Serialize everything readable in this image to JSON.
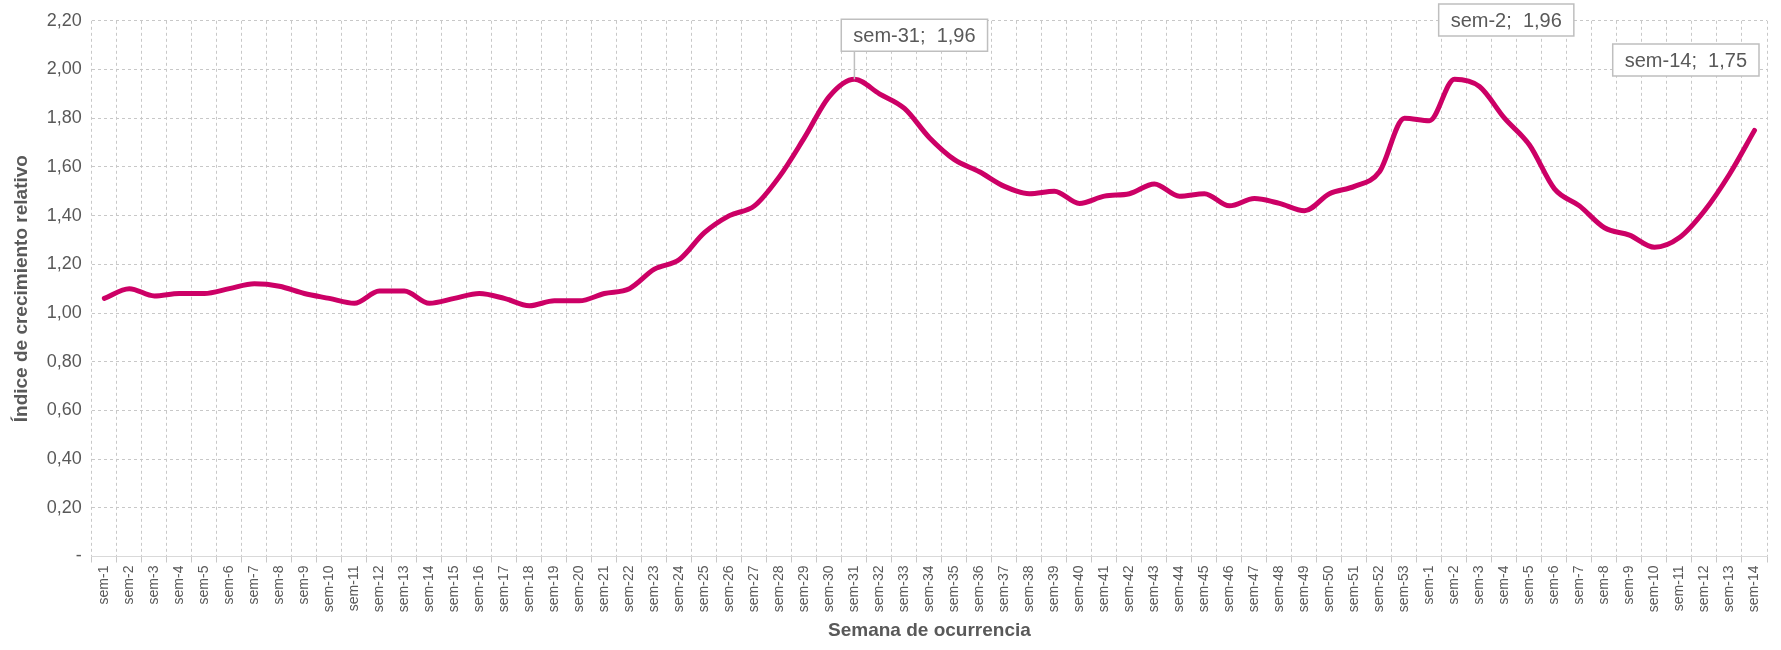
{
  "chart_data": {
    "type": "line",
    "xlabel": "Semana de ocurrencia",
    "ylabel": "Índice de crecimiento relativo",
    "categories": [
      "sem-1",
      "sem-2",
      "sem-3",
      "sem-4",
      "sem-5",
      "sem-6",
      "sem-7",
      "sem-8",
      "sem-9",
      "sem-10",
      "sem-11",
      "sem-12",
      "sem-13",
      "sem-14",
      "sem-15",
      "sem-16",
      "sem-17",
      "sem-18",
      "sem-19",
      "sem-20",
      "sem-21",
      "sem-22",
      "sem-23",
      "sem-24",
      "sem-25",
      "sem-26",
      "sem-27",
      "sem-28",
      "sem-29",
      "sem-30",
      "sem-31",
      "sem-32",
      "sem-33",
      "sem-34",
      "sem-35",
      "sem-36",
      "sem-37",
      "sem-38",
      "sem-39",
      "sem-40",
      "sem-41",
      "sem-42",
      "sem-43",
      "sem-44",
      "sem-45",
      "sem-46",
      "sem-47",
      "sem-48",
      "sem-49",
      "sem-50",
      "sem-51",
      "sem-52",
      "sem-53",
      "sem-1",
      "sem-2",
      "sem-3",
      "sem-4",
      "sem-5",
      "sem-6",
      "sem-7",
      "sem-8",
      "sem-9",
      "sem-10",
      "sem-11",
      "sem-12",
      "sem-13",
      "sem-14"
    ],
    "series": [
      {
        "color": "#cc0066",
        "values": [
          1.06,
          1.1,
          1.07,
          1.08,
          1.08,
          1.1,
          1.12,
          1.11,
          1.08,
          1.06,
          1.04,
          1.09,
          1.09,
          1.04,
          1.06,
          1.08,
          1.06,
          1.03,
          1.05,
          1.05,
          1.08,
          1.1,
          1.18,
          1.22,
          1.33,
          1.4,
          1.44,
          1.56,
          1.72,
          1.89,
          1.96,
          1.9,
          1.84,
          1.72,
          1.63,
          1.58,
          1.52,
          1.49,
          1.5,
          1.45,
          1.48,
          1.49,
          1.53,
          1.48,
          1.49,
          1.44,
          1.47,
          1.45,
          1.42,
          1.49,
          1.52,
          1.58,
          1.8,
          1.79,
          1.96,
          1.93,
          1.8,
          1.69,
          1.51,
          1.44,
          1.35,
          1.32,
          1.27,
          1.31,
          1.42,
          1.57,
          1.75
        ]
      }
    ],
    "ylim": [
      0,
      2.2
    ],
    "yticks": [
      {
        "value": 0,
        "label": "-"
      },
      {
        "value": 0.2,
        "label": "0,20"
      },
      {
        "value": 0.4,
        "label": "0,40"
      },
      {
        "value": 0.6,
        "label": "0,60"
      },
      {
        "value": 0.8,
        "label": "0,80"
      },
      {
        "value": 1,
        "label": "1,00"
      },
      {
        "value": 1.2,
        "label": "1,20"
      },
      {
        "value": 1.4,
        "label": "1,40"
      },
      {
        "value": 1.6,
        "label": "1,60"
      },
      {
        "value": 1.8,
        "label": "1,80"
      },
      {
        "value": 2,
        "label": "2,00"
      },
      {
        "value": 2.2,
        "label": "2,20"
      }
    ],
    "grid": true,
    "legend": false,
    "marker": "none",
    "line_style": "solid",
    "annotations": [
      {
        "text": "sem-31;  1,96",
        "x": "sem-31",
        "y": 1.96
      },
      "sem-2;  1,96",
      "sem-14;  1,75"
    ]
  }
}
